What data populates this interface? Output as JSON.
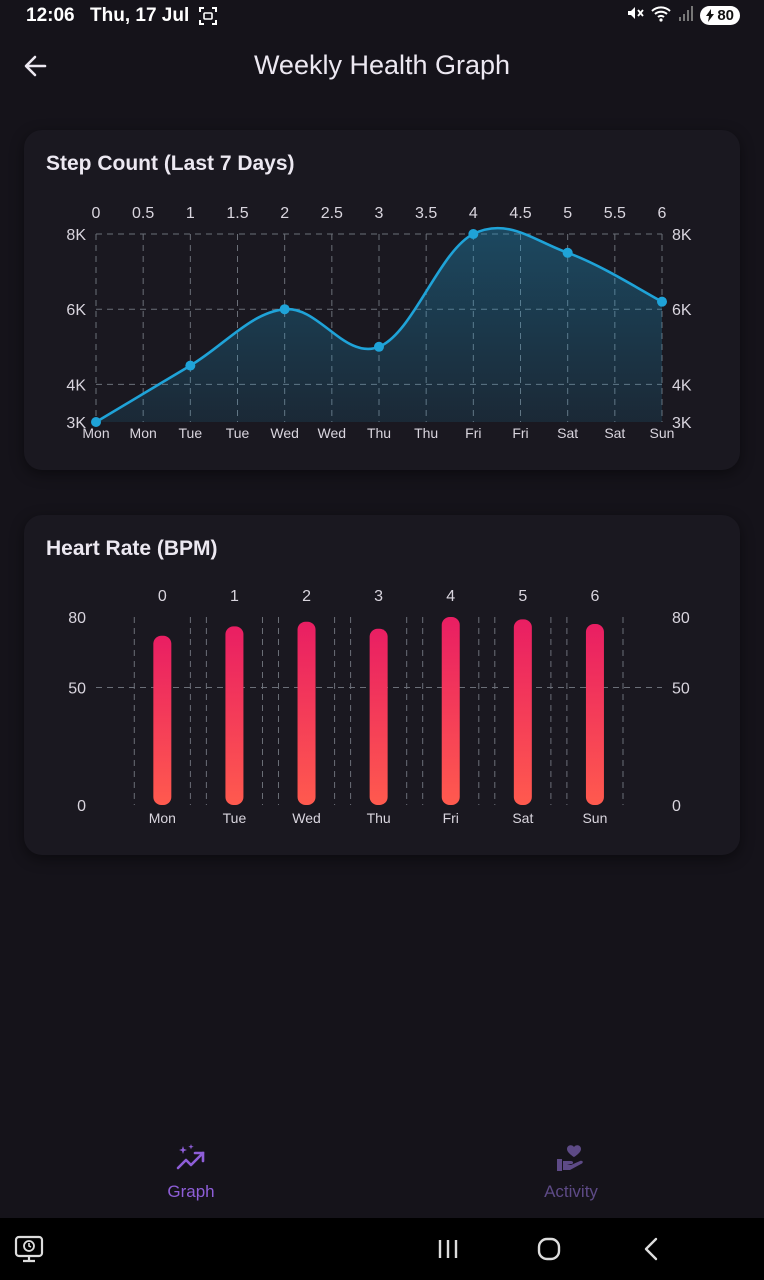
{
  "status_bar": {
    "time": "12:06",
    "date": "Thu, 17 Jul",
    "battery": "80",
    "icons": [
      "screenshot-icon",
      "mute-icon",
      "wifi-icon",
      "signal-icon",
      "battery-icon"
    ]
  },
  "app_bar": {
    "title": "Weekly Health Graph",
    "back_icon": "arrow-left-icon"
  },
  "colors": {
    "background": "#15131a",
    "card": "#1a1820",
    "step_line": "#1fa3d8",
    "bar_top": "#e91e63",
    "bar_bottom": "#ff5a4e",
    "nav_active": "#8e5ed8",
    "nav_inactive": "#5d4a86"
  },
  "step_chart": {
    "title": "Step Count (Last 7 Days)",
    "chart_data": {
      "type": "area",
      "x": [
        0,
        1,
        2,
        3,
        4,
        5,
        6
      ],
      "values": [
        3000,
        4500,
        6000,
        5000,
        8000,
        7500,
        6200
      ],
      "xlim": [
        0,
        6
      ],
      "ylim": [
        3000,
        8000
      ],
      "top_ticks": [
        "0",
        "0.5",
        "1",
        "1.5",
        "2",
        "2.5",
        "3",
        "3.5",
        "4",
        "4.5",
        "5",
        "5.5",
        "6"
      ],
      "bottom_ticks": [
        "Mon",
        "Mon",
        "Tue",
        "Tue",
        "Wed",
        "Wed",
        "Thu",
        "Thu",
        "Fri",
        "Fri",
        "Sat",
        "Sat",
        "Sun"
      ],
      "y_ticks": [
        {
          "value": 3000,
          "label": "3K"
        },
        {
          "value": 4000,
          "label": "4K"
        },
        {
          "value": 6000,
          "label": "6K"
        },
        {
          "value": 8000,
          "label": "8K"
        }
      ],
      "grid": true,
      "curved": true
    }
  },
  "heart_chart": {
    "title": "Heart Rate (BPM)",
    "chart_data": {
      "type": "bar",
      "categories": [
        "Mon",
        "Tue",
        "Wed",
        "Thu",
        "Fri",
        "Sat",
        "Sun"
      ],
      "top_ticks": [
        "0",
        "1",
        "2",
        "3",
        "4",
        "5",
        "6"
      ],
      "values": [
        72,
        76,
        78,
        75,
        80,
        79,
        77
      ],
      "ylim": [
        0,
        80
      ],
      "y_ticks": [
        {
          "value": 0,
          "label": "0"
        },
        {
          "value": 50,
          "label": "50"
        },
        {
          "value": 80,
          "label": "80"
        }
      ],
      "grid": true
    }
  },
  "bottom_nav": {
    "items": [
      {
        "label": "Graph",
        "icon": "sparkle-chart-icon",
        "active": true
      },
      {
        "label": "Activity",
        "icon": "heart-hand-icon",
        "active": false
      }
    ]
  },
  "system_nav": {
    "icons": [
      "screen-time-icon",
      "recent-apps-icon",
      "home-icon",
      "back-icon"
    ]
  }
}
